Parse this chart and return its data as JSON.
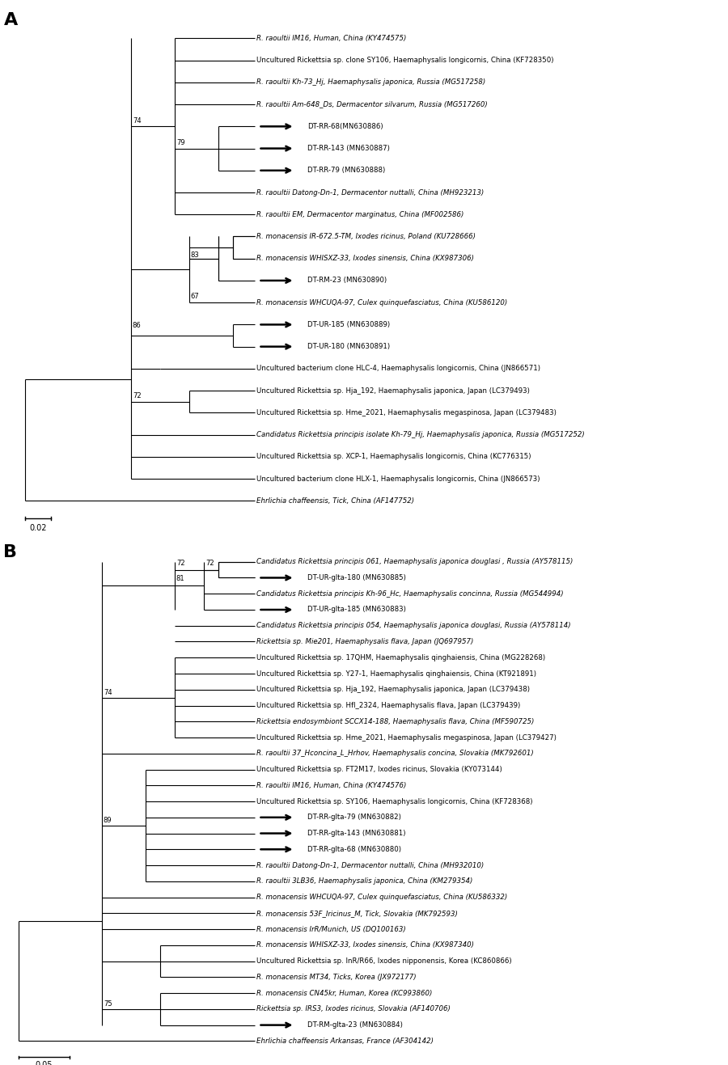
{
  "figsize": [
    9.0,
    13.17
  ],
  "dpi": 100,
  "font_size_taxa": 6.2,
  "font_size_bootstrap": 6.0,
  "font_size_label": 16,
  "line_width": 0.8,
  "panel_A": {
    "label": "A",
    "scalebar_label": "0.02",
    "taxa": [
      {
        "name": "R. raoultii IM16, Human, China (KY474575)",
        "y": 21,
        "arrow": false
      },
      {
        "name": "Uncultured Rickettsia sp. clone SY106, Haemaphysalis longicornis, China (KF728350)",
        "y": 20,
        "arrow": false
      },
      {
        "name": "R. raoultii Kh-73_Hj, Haemaphysalis japonica, Russia (MG517258)",
        "y": 19,
        "arrow": false
      },
      {
        "name": "R. raoultii Am-648_Ds, Dermacentor silvarum, Russia (MG517260)",
        "y": 18,
        "arrow": false
      },
      {
        "name": "DT-RR-68(MN630886)",
        "y": 17,
        "arrow": true
      },
      {
        "name": "DT-RR-143 (MN630887)",
        "y": 16,
        "arrow": true
      },
      {
        "name": "DT-RR-79 (MN630888)",
        "y": 15,
        "arrow": true
      },
      {
        "name": "R. raoultii Datong-Dn-1, Dermacentor nuttalli, China (MH923213)",
        "y": 14,
        "arrow": false
      },
      {
        "name": "R. raoultii EM, Dermacentor marginatus, China (MF002586)",
        "y": 13,
        "arrow": false
      },
      {
        "name": "R. monacensis IR-672.5-TM, Ixodes ricinus, Poland (KU728666)",
        "y": 12,
        "arrow": false
      },
      {
        "name": "R. monacensis WHISXZ-33, Ixodes sinensis, China (KX987306)",
        "y": 11,
        "arrow": false
      },
      {
        "name": "DT-RM-23 (MN630890)",
        "y": 10,
        "arrow": true
      },
      {
        "name": "R. monacensis WHCUQA-97, Culex quinquefasciatus, China (KU586120)",
        "y": 9,
        "arrow": false
      },
      {
        "name": "DT-UR-185 (MN630889)",
        "y": 8,
        "arrow": true
      },
      {
        "name": "DT-UR-180 (MN630891)",
        "y": 7,
        "arrow": true
      },
      {
        "name": "Uncultured bacterium clone HLC-4, Haemaphysalis longicornis, China (JN866571)",
        "y": 6,
        "arrow": false
      },
      {
        "name": "Uncultured Rickettsia sp. Hja_192, Haemaphysalis japonica, Japan (LC379493)",
        "y": 5,
        "arrow": false
      },
      {
        "name": "Uncultured Rickettsia sp. Hme_2021, Haemaphysalis megaspinosa, Japan (LC379483)",
        "y": 4,
        "arrow": false
      },
      {
        "name": "Candidatus Rickettsia principis isolate Kh-79_Hj, Haemaphysalis japonica, Russia (MG517252)",
        "y": 3,
        "arrow": false
      },
      {
        "name": "Uncultured Rickettsia sp. XCP-1, Haemaphysalis longicornis, China (KC776315)",
        "y": 2,
        "arrow": false
      },
      {
        "name": "Uncultured bacterium clone HLX-1, Haemaphysalis longicornis, China (JN866573)",
        "y": 1,
        "arrow": false
      },
      {
        "name": "Ehrlichia chaffeensis, Tick, China (AF147752)",
        "y": 0,
        "arrow": false
      }
    ]
  },
  "panel_B": {
    "label": "B",
    "scalebar_label": "0.05",
    "taxa": [
      {
        "name": "Candidatus Rickettsia principis 061, Haemaphysalis japonica douglasi , Russia (AY578115)",
        "y": 30,
        "arrow": false
      },
      {
        "name": "DT-UR-glta-180 (MN630885)",
        "y": 29,
        "arrow": true
      },
      {
        "name": "Candidatus Rickettsia principis Kh-96_Hc, Haemaphysalis concinna, Russia (MG544994)",
        "y": 28,
        "arrow": false
      },
      {
        "name": "DT-UR-glta-185 (MN630883)",
        "y": 27,
        "arrow": true
      },
      {
        "name": "Candidatus Rickettsia principis 054, Haemaphysalis japonica douglasi, Russia (AY578114)",
        "y": 26,
        "arrow": false
      },
      {
        "name": "Rickettsia sp. Mie201, Haemaphysalis flava, Japan (JQ697957)",
        "y": 25,
        "arrow": false
      },
      {
        "name": "Uncultured Rickettsia sp. 17QHM, Haemaphysalis qinghaiensis, China (MG228268)",
        "y": 24,
        "arrow": false
      },
      {
        "name": "Uncultured Rickettsia sp. Y27-1, Haemaphysalis qinghaiensis, China (KT921891)",
        "y": 23,
        "arrow": false
      },
      {
        "name": "Uncultured Rickettsia sp. Hja_192, Haemaphysalis japonica, Japan (LC379438)",
        "y": 22,
        "arrow": false
      },
      {
        "name": "Uncultured Rickettsia sp. Hfl_2324, Haemaphysalis flava, Japan (LC379439)",
        "y": 21,
        "arrow": false
      },
      {
        "name": "Rickettsia endosymbiont SCCX14-188, Haemaphysalis flava, China (MF590725)",
        "y": 20,
        "arrow": false
      },
      {
        "name": "Uncultured Rickettsia sp. Hme_2021, Haemaphysalis megaspinosa, Japan (LC379427)",
        "y": 19,
        "arrow": false
      },
      {
        "name": "R. raoultii 37_Hconcina_L_Hrhov, Haemaphysalis concina, Slovakia (MK792601)",
        "y": 18,
        "arrow": false
      },
      {
        "name": "Uncultured Rickettsia sp. FT2M17, Ixodes ricinus, Slovakia (KY073144)",
        "y": 17,
        "arrow": false
      },
      {
        "name": "R. raoultii IM16, Human, China (KY474576)",
        "y": 16,
        "arrow": false
      },
      {
        "name": "Uncultured Rickettsia sp. SY106, Haemaphysalis longicornis, China (KF728368)",
        "y": 15,
        "arrow": false
      },
      {
        "name": "DT-RR-glta-79 (MN630882)",
        "y": 14,
        "arrow": true
      },
      {
        "name": "DT-RR-glta-143 (MN630881)",
        "y": 13,
        "arrow": true
      },
      {
        "name": "DT-RR-glta-68 (MN630880)",
        "y": 12,
        "arrow": true
      },
      {
        "name": "R. raoultii Datong-Dn-1, Dermacentor nuttalli, China (MH932010)",
        "y": 11,
        "arrow": false
      },
      {
        "name": "R. raoultii 3LB36, Haemaphysalis japonica, China (KM279354)",
        "y": 10,
        "arrow": false
      },
      {
        "name": "R. monacensis WHCUQA-97, Culex quinquefasciatus, China (KU586332)",
        "y": 9,
        "arrow": false
      },
      {
        "name": "R. monacensis 53F_Iricinus_M, Tick, Slovakia (MK792593)",
        "y": 8,
        "arrow": false
      },
      {
        "name": "R. monacensis IrR/Munich, US (DQ100163)",
        "y": 7,
        "arrow": false
      },
      {
        "name": "R. monacensis WHISXZ-33, Ixodes sinensis, China (KX987340)",
        "y": 6,
        "arrow": false
      },
      {
        "name": "Uncultured Rickettsia sp. InR/R66, Ixodes nipponensis, Korea (KC860866)",
        "y": 5,
        "arrow": false
      },
      {
        "name": "R. monacensis MT34, Ticks, Korea (JX972177)",
        "y": 4,
        "arrow": false
      },
      {
        "name": "R. monacensis CN45kr, Human, Korea (KC993860)",
        "y": 3,
        "arrow": false
      },
      {
        "name": "Rickettsia sp. IRS3, Ixodes ricinus, Slovakia (AF140706)",
        "y": 2,
        "arrow": false
      },
      {
        "name": "DT-RM-glta-23 (MN630884)",
        "y": 1,
        "arrow": true
      },
      {
        "name": "Ehrlichia chaffeensis Arkansas, France (AF304142)",
        "y": 0,
        "arrow": false
      }
    ]
  }
}
